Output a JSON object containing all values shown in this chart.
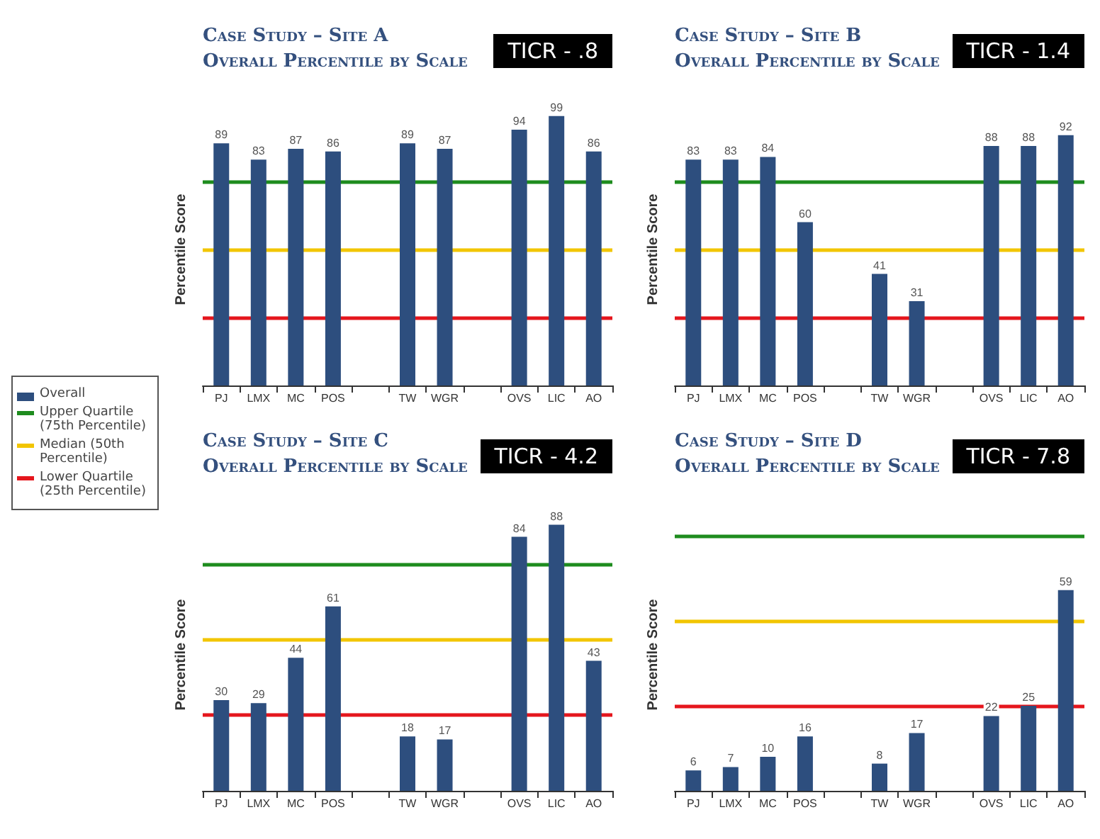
{
  "chart_data": [
    {
      "type": "bar",
      "title": "Case Study – Site A",
      "subtitle": "Overall Percentile by Scale",
      "ylabel": "Percentile Score",
      "annotations": [
        "TICR - .8"
      ],
      "categories": [
        "PJ",
        "LMX",
        "MC",
        "POS",
        null,
        "TW",
        "WGR",
        null,
        "OVS",
        "LIC",
        "AO"
      ],
      "series": [
        {
          "name": "Overall",
          "color": "#2d4e7e",
          "values": [
            89,
            83,
            87,
            86,
            null,
            89,
            87,
            null,
            94,
            99,
            86
          ]
        }
      ],
      "tick_labels": "x",
      "data_labels": true,
      "legend": "left",
      "grid": false,
      "ref_lines": [
        {
          "axis": "y",
          "value": 75,
          "label": "Upper Quartile (75th Percentile)",
          "color": "#1e8c1e"
        },
        {
          "axis": "y",
          "value": 50,
          "label": "Median (50th Percentile)",
          "color": "#f2c500"
        },
        {
          "axis": "y",
          "value": 25,
          "label": "Lower Quartile (25th Percentile)",
          "color": "#e5161d"
        }
      ]
    },
    {
      "type": "bar",
      "title": "Case Study – Site B",
      "subtitle": "Overall Percentile by Scale",
      "ylabel": "Percentile Score",
      "annotations": [
        "TICR - 1.4"
      ],
      "categories": [
        "PJ",
        "LMX",
        "MC",
        "POS",
        null,
        "TW",
        "WGR",
        null,
        "OVS",
        "LIC",
        "AO"
      ],
      "series": [
        {
          "color": "#2d4e7e",
          "values": [
            83,
            83,
            84,
            60,
            null,
            41,
            31,
            null,
            88,
            88,
            92
          ]
        }
      ],
      "tick_labels": "x",
      "data_labels": true,
      "grid": false,
      "ref_lines": [
        {
          "axis": "y",
          "value": 75,
          "color": "#1e8c1e"
        },
        {
          "axis": "y",
          "value": 50,
          "color": "#f2c500"
        },
        {
          "axis": "y",
          "value": 25,
          "color": "#e5161d"
        }
      ]
    },
    {
      "type": "bar",
      "title": "Case Study – Site C",
      "subtitle": "Overall Percentile by Scale",
      "ylabel": "Percentile Score",
      "annotations": [
        "TICR - 4.2"
      ],
      "categories": [
        "PJ",
        "LMX",
        "MC",
        "POS",
        null,
        "TW",
        "WGR",
        null,
        "OVS",
        "LIC",
        "AO"
      ],
      "series": [
        {
          "color": "#2d4e7e",
          "values": [
            30,
            29,
            44,
            61,
            null,
            18,
            17,
            null,
            84,
            88,
            43
          ]
        }
      ],
      "tick_labels": "x",
      "data_labels": true,
      "grid": false,
      "ref_lines": [
        {
          "axis": "y",
          "value": 75,
          "color": "#1e8c1e"
        },
        {
          "axis": "y",
          "value": 50,
          "color": "#f2c500"
        },
        {
          "axis": "y",
          "value": 25,
          "color": "#e5161d"
        }
      ]
    },
    {
      "type": "bar",
      "title": "Case Study – Site D",
      "subtitle": "Overall Percentile by Scale",
      "ylabel": "Percentile Score",
      "annotations": [
        "TICR - 7.8"
      ],
      "categories": [
        "PJ",
        "LMX",
        "MC",
        "POS",
        null,
        "TW",
        "WGR",
        null,
        "OVS",
        "LIC",
        "AO"
      ],
      "series": [
        {
          "color": "#2d4e7e",
          "values": [
            6,
            7,
            10,
            16,
            null,
            8,
            17,
            null,
            22,
            25,
            59
          ]
        }
      ],
      "tick_labels": "x",
      "data_labels": true,
      "grid": false,
      "ref_lines": [
        {
          "axis": "y",
          "value": 75,
          "color": "#1e8c1e"
        },
        {
          "axis": "y",
          "value": 50,
          "color": "#f2c500"
        },
        {
          "axis": "y",
          "value": 25,
          "color": "#e5161d"
        }
      ]
    }
  ]
}
